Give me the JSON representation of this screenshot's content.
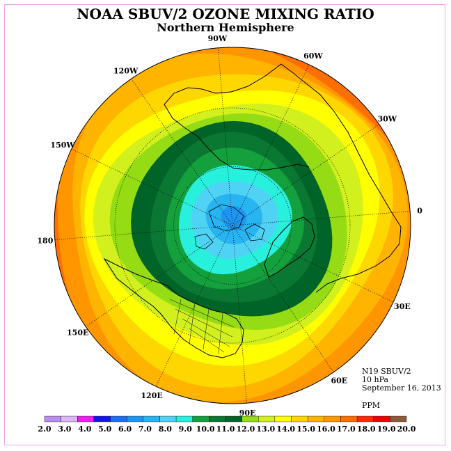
{
  "title": "NOAA SBUV/2 OZONE MIXING RATIO",
  "subtitle": "Northern Hemisphere",
  "info": {
    "instrument": "N19 SBUV/2",
    "level": "10 hPa",
    "date": "September 16, 2013",
    "units": "PPM"
  },
  "longitude_labels": [
    {
      "text": "90E",
      "lon": 90
    },
    {
      "text": "60E",
      "lon": 60
    },
    {
      "text": "30E",
      "lon": 30
    },
    {
      "text": "0",
      "lon": 0
    },
    {
      "text": "30W",
      "lon": -30
    },
    {
      "text": "60W",
      "lon": -60
    },
    {
      "text": "90W",
      "lon": -90
    },
    {
      "text": "120W",
      "lon": -120
    },
    {
      "text": "150W",
      "lon": -150
    },
    {
      "text": "180",
      "lon": 180
    },
    {
      "text": "150E",
      "lon": 150
    },
    {
      "text": "120E",
      "lon": 120
    }
  ],
  "colorbar": {
    "ticks": [
      "2.0",
      "3.0",
      "4.0",
      "5.0",
      "6.0",
      "7.0",
      "8.0",
      "9.0",
      "10.0",
      "11.0",
      "12.0",
      "13.0",
      "14.0",
      "15.0",
      "16.0",
      "17.0",
      "18.0",
      "19.0",
      "20.0"
    ],
    "colors": [
      "#b98cf0",
      "#d9b8f5",
      "#f01ef0",
      "#1414f0",
      "#1e6ef0",
      "#1e96f0",
      "#28b4f0",
      "#50d2f5",
      "#28f0dc",
      "#14a03c",
      "#0a7832",
      "#006428",
      "#96dc14",
      "#d2f01e",
      "#ffff00",
      "#ffd700",
      "#ffb400",
      "#ff9600",
      "#ff6e00",
      "#ff2800",
      "#f00000",
      "#8c5a3c"
    ]
  },
  "bands": [
    {
      "color": "#f00000"
    },
    {
      "color": "#ff6e00"
    },
    {
      "color": "#ff9600"
    },
    {
      "color": "#ffb400"
    },
    {
      "color": "#ffd700"
    },
    {
      "color": "#ffff00"
    },
    {
      "color": "#d2f01e"
    },
    {
      "color": "#96dc14"
    },
    {
      "color": "#006428"
    },
    {
      "color": "#0a7832"
    },
    {
      "color": "#14a03c"
    },
    {
      "color": "#28f0dc"
    },
    {
      "color": "#50d2f5"
    },
    {
      "color": "#28b4f0"
    },
    {
      "color": "#1e96f0"
    }
  ]
}
